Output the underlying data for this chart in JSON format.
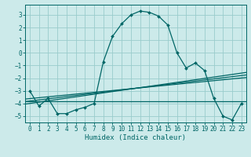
{
  "title": "",
  "xlabel": "Humidex (Indice chaleur)",
  "bg_color": "#cceaea",
  "grid_color": "#99cccc",
  "line_color": "#006666",
  "xlim": [
    -0.5,
    23.5
  ],
  "ylim": [
    -5.5,
    3.8
  ],
  "yticks": [
    -5,
    -4,
    -3,
    -2,
    -1,
    0,
    1,
    2,
    3
  ],
  "xticks": [
    0,
    1,
    2,
    3,
    4,
    5,
    6,
    7,
    8,
    9,
    10,
    11,
    12,
    13,
    14,
    15,
    16,
    17,
    18,
    19,
    20,
    21,
    22,
    23
  ],
  "main_x": [
    0,
    1,
    2,
    3,
    4,
    5,
    6,
    7,
    8,
    9,
    10,
    11,
    12,
    13,
    14,
    15,
    16,
    17,
    18,
    19,
    20,
    21,
    22,
    23
  ],
  "main_y": [
    -3.0,
    -4.2,
    -3.6,
    -4.8,
    -4.8,
    -4.5,
    -4.3,
    -4.0,
    -0.7,
    1.3,
    2.3,
    3.0,
    3.3,
    3.2,
    2.9,
    2.2,
    0.0,
    -1.2,
    -0.8,
    -1.4,
    -3.6,
    -5.0,
    -5.3,
    -4.0
  ],
  "flat_line": {
    "x": [
      -0.5,
      23.5
    ],
    "y": [
      -3.8,
      -3.8
    ]
  },
  "diag_lines": [
    {
      "x": [
        -0.5,
        23.5
      ],
      "y": [
        -4.05,
        -1.55
      ]
    },
    {
      "x": [
        -0.5,
        23.5
      ],
      "y": [
        -3.85,
        -1.75
      ]
    },
    {
      "x": [
        -0.5,
        23.5
      ],
      "y": [
        -3.65,
        -1.95
      ]
    }
  ],
  "tick_fontsize": 5.5,
  "xlabel_fontsize": 6.5,
  "line_width": 0.9,
  "marker_size": 2.0
}
